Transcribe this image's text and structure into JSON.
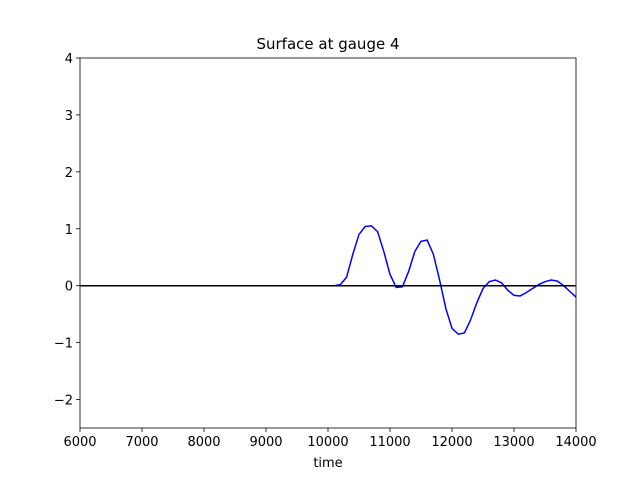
{
  "chart_data": {
    "type": "line",
    "title": "Surface at gauge 4",
    "x_label": "time",
    "series": [
      {
        "color": "#0000ff",
        "x": [
          6000,
          10000,
          10100,
          10200,
          10300,
          10400,
          10500,
          10600,
          10700,
          10800,
          10900,
          11000,
          11100,
          11200,
          11300,
          11400,
          11500,
          11600,
          11700,
          11800,
          11900,
          12000,
          12100,
          12200,
          12300,
          12400,
          12500,
          12600,
          12700,
          12800,
          12900,
          13000,
          13100,
          13200,
          13300,
          13400,
          13500,
          13600,
          13700,
          13800,
          13900,
          14000
        ],
        "values": [
          0,
          0,
          0,
          0.02,
          0.15,
          0.55,
          0.9,
          1.04,
          1.05,
          0.95,
          0.6,
          0.2,
          -0.03,
          -0.02,
          0.25,
          0.6,
          0.78,
          0.8,
          0.55,
          0.1,
          -0.4,
          -0.75,
          -0.85,
          -0.83,
          -0.6,
          -0.3,
          -0.05,
          0.07,
          0.1,
          0.05,
          -0.08,
          -0.17,
          -0.18,
          -0.12,
          -0.05,
          0.02,
          0.07,
          0.1,
          0.08,
          0.0,
          -0.1,
          -0.2
        ]
      },
      {
        "color": "#000000",
        "x": [
          6000,
          14000
        ],
        "values": [
          0,
          0
        ]
      }
    ],
    "xlim": [
      6000,
      14000
    ],
    "xticks": [
      6000,
      7000,
      8000,
      9000,
      10000,
      11000,
      12000,
      13000,
      14000
    ],
    "ylim": [
      -2.5,
      4
    ],
    "yticks": [
      {
        "value": -2,
        "label": "−2"
      },
      {
        "value": -1,
        "label": "−1"
      },
      0,
      1,
      2,
      3,
      4
    ]
  }
}
